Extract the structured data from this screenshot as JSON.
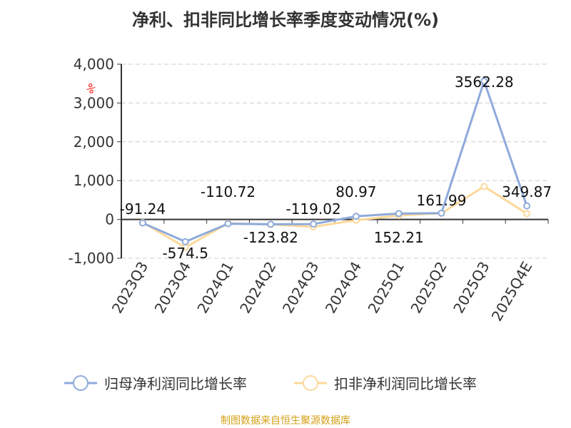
{
  "title": "净利、扣非同比增长率季度变动情况(%)",
  "source": "制图数据来自恒生聚源数据库",
  "chart_data": {
    "type": "line",
    "title": "净利、扣非同比增长率季度变动情况(%)",
    "unit_label": "%",
    "categories": [
      "2023Q3",
      "2023Q4",
      "2024Q1",
      "2024Q2",
      "2024Q3",
      "2024Q4",
      "2025Q1",
      "2025Q2",
      "2025Q3",
      "2025Q4E"
    ],
    "ylim": [
      -1000,
      4000
    ],
    "yticks": [
      -1000,
      0,
      1000,
      2000,
      3000,
      4000
    ],
    "ytick_labels": [
      "-1,000",
      "0",
      "1,000",
      "2,000",
      "3,000",
      "4,000"
    ],
    "grid": true,
    "legend": "bottom",
    "series": [
      {
        "name": "归母净利润同比增长率",
        "color": "#8eaadb",
        "values": [
          -91.24,
          -574.5,
          -110.72,
          -123.82,
          -119.02,
          80.97,
          152.21,
          161.99,
          3562.28,
          349.87
        ],
        "labels": [
          "-91.24",
          "-574.5",
          "-110.72",
          "-123.82",
          "-119.02",
          "80.97",
          "152.21",
          "161.99",
          "3562.28",
          "349.87"
        ]
      },
      {
        "name": "扣非净利润同比增长率",
        "color": "#fbd99c",
        "values": [
          -80,
          -720,
          -100,
          -130,
          -190,
          -20,
          100,
          160,
          850,
          150
        ]
      }
    ]
  }
}
